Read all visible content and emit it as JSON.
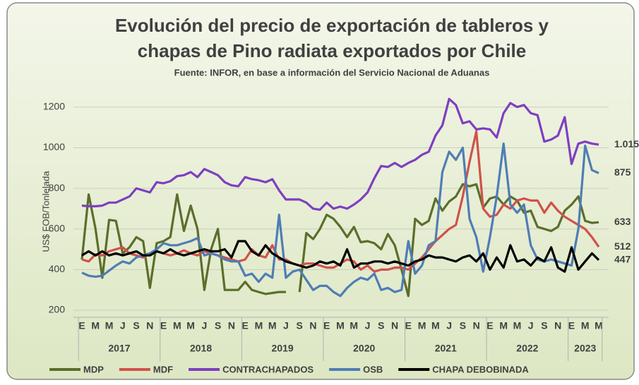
{
  "chart_data": {
    "type": "line",
    "title": [
      "Evolución del precio de exportación de tableros y",
      "chapas de Pino radiata exportados por Chile"
    ],
    "subtitle": "Fuente: INFOR, en base a información del Servicio Nacional de Aduanas",
    "y_label": "US$ FOB/Tonlelada",
    "categories": [
      "E",
      null,
      "M",
      null,
      "M",
      null,
      "J",
      null,
      "S",
      null,
      "N",
      null,
      "E",
      null,
      "M",
      null,
      "M",
      null,
      "J",
      null,
      "S",
      null,
      "N",
      null,
      "E",
      null,
      "M",
      null,
      "M",
      null,
      "J",
      null,
      "S",
      null,
      "N",
      null,
      "E",
      null,
      "M",
      null,
      "M",
      null,
      "J",
      null,
      "S",
      null,
      "N",
      null,
      "E",
      null,
      "M",
      null,
      "M",
      null,
      "J",
      null,
      "S",
      null,
      "N",
      null,
      "E",
      null,
      "M",
      null,
      "M",
      null,
      "J",
      null,
      "S",
      null,
      "N",
      null,
      "E",
      null,
      "M",
      null,
      "M"
    ],
    "x_groups": [
      "2017",
      "2018",
      "2019",
      "2020",
      "2021",
      "2022",
      "2023"
    ],
    "ylim": [
      200,
      1300
    ],
    "yticks": [
      200,
      400,
      600,
      800,
      1000,
      1200
    ],
    "grid": true,
    "legend": "bottom",
    "series": [
      {
        "name": "MDP",
        "color": "#5b6e2b",
        "values": [
          450,
          770,
          600,
          360,
          645,
          640,
          480,
          510,
          560,
          540,
          310,
          530,
          540,
          560,
          770,
          590,
          715,
          600,
          300,
          500,
          600,
          300,
          300,
          300,
          340,
          300,
          290,
          280,
          285,
          290,
          290,
          null,
          290,
          580,
          550,
          600,
          670,
          650,
          610,
          560,
          610,
          535,
          540,
          530,
          500,
          575,
          520,
          400,
          270,
          650,
          620,
          640,
          750,
          690,
          735,
          760,
          820,
          810,
          820,
          705,
          750,
          760,
          720,
          760,
          740,
          680,
          690,
          610,
          600,
          590,
          610,
          690,
          720,
          760,
          640,
          630,
          633
        ]
      },
      {
        "name": "MDF",
        "color": "#d0524a",
        "values": [
          450,
          440,
          475,
          470,
          490,
          500,
          510,
          480,
          470,
          460,
          480,
          490,
          480,
          470,
          480,
          495,
          480,
          470,
          490,
          480,
          470,
          460,
          450,
          440,
          450,
          500,
          470,
          460,
          520,
          450,
          450,
          430,
          420,
          430,
          430,
          420,
          410,
          410,
          430,
          450,
          440,
          400,
          420,
          390,
          400,
          400,
          410,
          410,
          400,
          430,
          460,
          500,
          540,
          570,
          600,
          620,
          760,
          930,
          1080,
          700,
          660,
          670,
          720,
          700,
          740,
          750,
          740,
          740,
          680,
          730,
          690,
          660,
          640,
          620,
          600,
          560,
          512
        ]
      },
      {
        "name": "CONTRACHAPADOS",
        "color": "#7e3fc0",
        "values": [
          715,
          712,
          712,
          715,
          730,
          730,
          745,
          760,
          800,
          790,
          780,
          830,
          825,
          835,
          860,
          865,
          880,
          855,
          895,
          880,
          865,
          830,
          815,
          810,
          855,
          845,
          840,
          830,
          845,
          790,
          745,
          745,
          745,
          730,
          700,
          695,
          730,
          700,
          710,
          700,
          720,
          745,
          780,
          850,
          910,
          905,
          925,
          905,
          925,
          940,
          965,
          980,
          1060,
          1110,
          1240,
          1210,
          1120,
          1130,
          1090,
          1095,
          1090,
          1050,
          1170,
          1220,
          1200,
          1210,
          1170,
          1160,
          1030,
          1040,
          1060,
          1150,
          920,
          1020,
          1030,
          1020,
          1015
        ],
        "value_labels": [
          null,
          null,
          null,
          null,
          null,
          null,
          null,
          null,
          null,
          null,
          null,
          null,
          null,
          null,
          null,
          null,
          null,
          null,
          null,
          null,
          null,
          null,
          null,
          null,
          null,
          null,
          null,
          null,
          null,
          null,
          null,
          null,
          null,
          null,
          null,
          null,
          null,
          null,
          null,
          null,
          null,
          null,
          null,
          null,
          null,
          null,
          null,
          null,
          null,
          null,
          null,
          null,
          null,
          null,
          null,
          null,
          null,
          null,
          null,
          null,
          null,
          null,
          null,
          null,
          null,
          null,
          null,
          null,
          null,
          null,
          null,
          null,
          null,
          null,
          null,
          null,
          "1.015"
        ]
      },
      {
        "name": "OSB",
        "color": "#4f7db5",
        "values": [
          385,
          370,
          365,
          370,
          395,
          420,
          440,
          430,
          460,
          470,
          480,
          500,
          530,
          520,
          520,
          530,
          540,
          555,
          470,
          480,
          470,
          450,
          440,
          440,
          370,
          380,
          340,
          380,
          360,
          670,
          360,
          390,
          400,
          350,
          300,
          320,
          320,
          290,
          270,
          310,
          340,
          360,
          350,
          380,
          300,
          310,
          290,
          300,
          540,
          380,
          420,
          520,
          540,
          880,
          980,
          940,
          1000,
          650,
          560,
          390,
          560,
          760,
          1020,
          720,
          680,
          720,
          520,
          450,
          440,
          450,
          440,
          430,
          420,
          600,
          1010,
          890,
          875
        ]
      },
      {
        "name": "CHAPA DEBOBINADA",
        "color": "#000000",
        "values": [
          470,
          490,
          470,
          490,
          470,
          480,
          470,
          480,
          490,
          470,
          470,
          490,
          480,
          500,
          480,
          470,
          480,
          490,
          500,
          490,
          490,
          500,
          460,
          540,
          540,
          490,
          470,
          520,
          480,
          460,
          440,
          430,
          420,
          410,
          420,
          440,
          430,
          440,
          420,
          500,
          410,
          430,
          430,
          440,
          440,
          430,
          440,
          430,
          420,
          440,
          450,
          470,
          460,
          460,
          450,
          440,
          460,
          470,
          440,
          480,
          400,
          460,
          410,
          520,
          440,
          450,
          420,
          460,
          440,
          510,
          410,
          390,
          510,
          400,
          440,
          480,
          447
        ]
      }
    ]
  }
}
